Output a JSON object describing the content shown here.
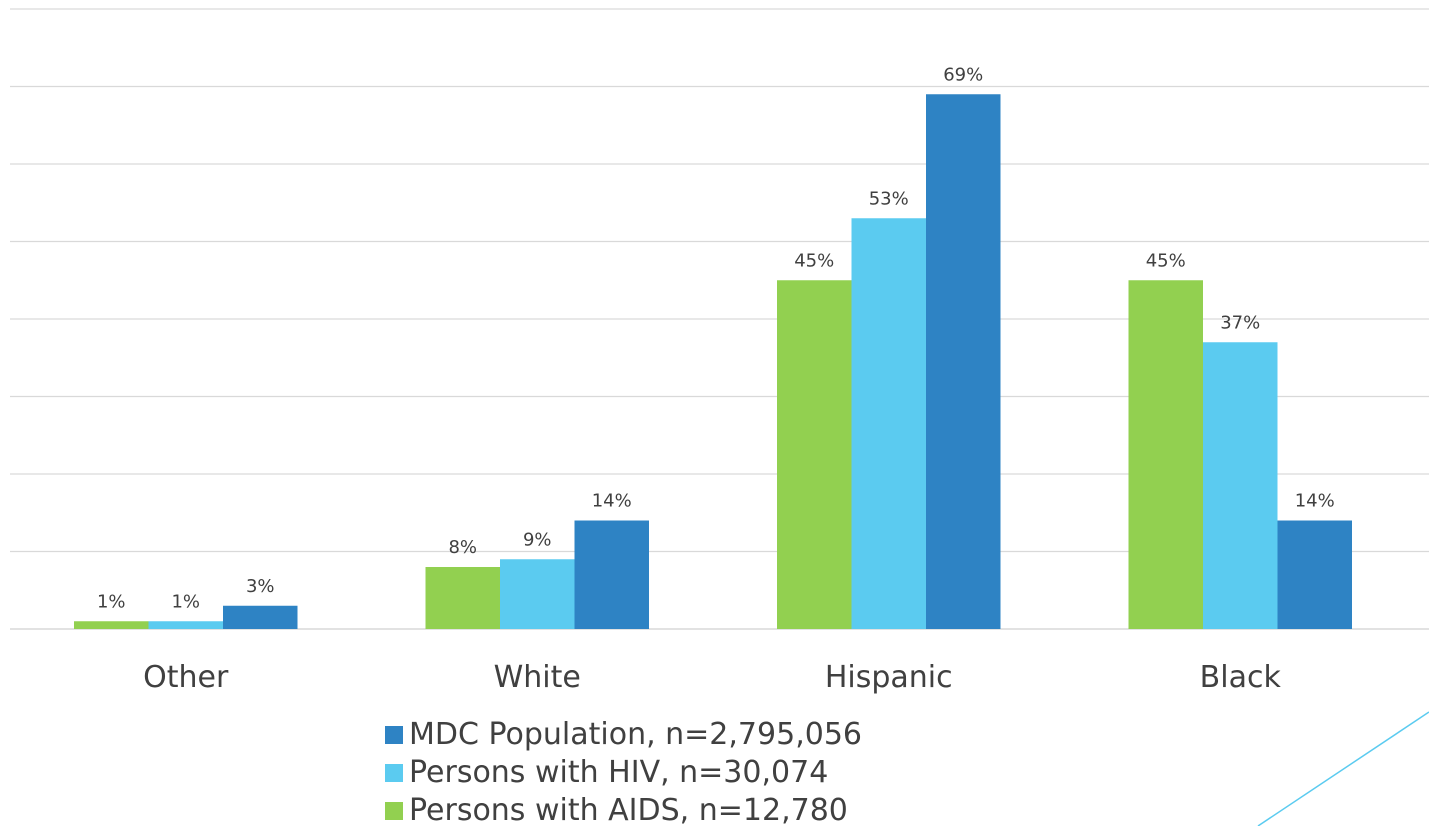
{
  "chart_data": {
    "type": "bar",
    "categories": [
      "Other",
      "White",
      "Hispanic",
      "Black"
    ],
    "series": [
      {
        "name": "Persons with AIDS, n=12,780",
        "color": "#92d050",
        "values": [
          1,
          8,
          45,
          45
        ],
        "labels": [
          "1%",
          "8%",
          "45%",
          "45%"
        ]
      },
      {
        "name": "Persons with HIV, n=30,074",
        "color": "#5bcbf0",
        "values": [
          1,
          9,
          53,
          37
        ],
        "labels": [
          "1%",
          "9%",
          "53%",
          "37%"
        ]
      },
      {
        "name": "MDC Population, n=2,795,056",
        "color": "#2e83c4",
        "values": [
          3,
          14,
          69,
          14
        ],
        "labels": [
          "3%",
          "14%",
          "69%",
          "14%"
        ]
      }
    ],
    "ylim": [
      0,
      80
    ],
    "grid": true,
    "legend_position": "bottom",
    "legend_order": [
      2,
      1,
      0
    ]
  },
  "decoration": {
    "accent_line_color": "#5bcbf0"
  }
}
